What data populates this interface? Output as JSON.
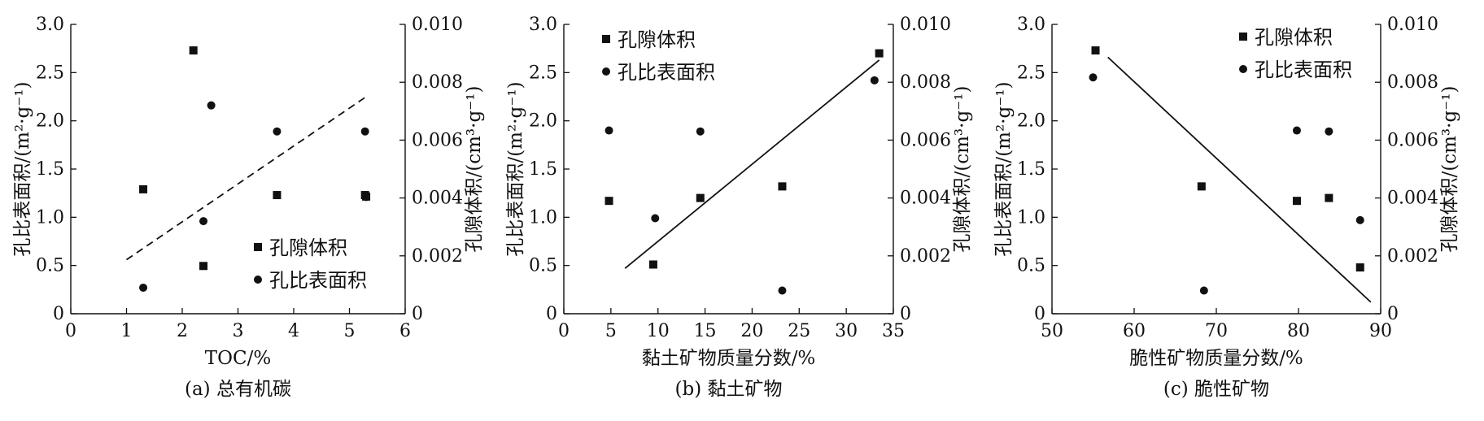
{
  "chart_data": [
    {
      "type": "scatter",
      "caption": "(a) 总有机碳",
      "xlabel": "TOC/%",
      "ylabel_left": "孔比表面积/(m²·g⁻¹)",
      "ylabel_right": "孔隙体积/(cm³·g⁻¹)",
      "xlim": [
        0,
        6
      ],
      "xticks": [
        "0",
        "1",
        "2",
        "3",
        "4",
        "5",
        "6"
      ],
      "ylim_left": [
        0,
        3.0
      ],
      "yticks_left": [
        "0",
        "0.5",
        "1.0",
        "1.5",
        "2.0",
        "2.5",
        "3.0"
      ],
      "ylim_right": [
        0,
        0.01
      ],
      "yticks_right": [
        "0",
        "0.002",
        "0.004",
        "0.006",
        "0.008",
        "0.010"
      ],
      "legend_position": "bottom-right",
      "series": [
        {
          "name": "孔隙体积",
          "marker": "square",
          "axis": "right",
          "x": [
            1.3,
            2.2,
            2.38,
            3.7,
            5.28,
            5.3
          ],
          "y": [
            0.0043,
            0.0091,
            0.00165,
            0.0041,
            0.0041,
            0.00405
          ]
        },
        {
          "name": "孔比表面积",
          "marker": "circle",
          "axis": "left",
          "x": [
            1.3,
            2.38,
            2.52,
            3.7,
            5.28,
            5.3
          ],
          "y": [
            0.27,
            0.96,
            2.16,
            1.89,
            1.89,
            1.21
          ]
        }
      ],
      "fit_lines": [
        {
          "style": "dashed",
          "x": [
            1.0,
            5.3
          ],
          "y": [
            0.56,
            2.25
          ]
        }
      ]
    },
    {
      "type": "scatter",
      "caption": "(b) 黏土矿物",
      "xlabel": "黏土矿物质量分数/%",
      "ylabel_left": "孔比表面积/(m²·g⁻¹)",
      "ylabel_right": "孔隙体积/(cm³·g⁻¹)",
      "xlim": [
        0,
        35
      ],
      "xticks": [
        "0",
        "5",
        "10",
        "15",
        "20",
        "25",
        "30",
        "35"
      ],
      "ylim_left": [
        0,
        3.0
      ],
      "yticks_left": [
        "0",
        "0.5",
        "1.0",
        "1.5",
        "2.0",
        "2.5",
        "3.0"
      ],
      "ylim_right": [
        0,
        0.01
      ],
      "yticks_right": [
        "0",
        "0.002",
        "0.004",
        "0.006",
        "0.008",
        "0.010"
      ],
      "legend_position": "top-left",
      "series": [
        {
          "name": "孔隙体积",
          "marker": "square",
          "axis": "right",
          "x": [
            4.8,
            9.5,
            14.5,
            23.2,
            33.5
          ],
          "y": [
            0.0039,
            0.0017,
            0.004,
            0.0044,
            0.009
          ]
        },
        {
          "name": "孔比表面积",
          "marker": "circle",
          "axis": "left",
          "x": [
            4.8,
            9.7,
            14.5,
            23.2,
            33.0
          ],
          "y": [
            1.9,
            0.99,
            1.89,
            0.24,
            2.42
          ]
        }
      ],
      "fit_lines": [
        {
          "style": "solid",
          "x": [
            6.5,
            33.5
          ],
          "y": [
            0.47,
            2.63
          ]
        }
      ]
    },
    {
      "type": "scatter",
      "caption": "(c) 脆性矿物",
      "xlabel": "脆性矿物质量分数/%",
      "ylabel_left": "孔比表面积/(m²·g⁻¹)",
      "ylabel_right": "孔隙体积/(cm³·g⁻¹)",
      "xlim": [
        50,
        90
      ],
      "xticks": [
        "50",
        "60",
        "70",
        "80",
        "90"
      ],
      "ylim_left": [
        0,
        3.0
      ],
      "yticks_left": [
        "0",
        "0.5",
        "1.0",
        "1.5",
        "2.0",
        "2.5",
        "3.0"
      ],
      "ylim_right": [
        0,
        0.01
      ],
      "yticks_right": [
        "0",
        "0.002",
        "0.004",
        "0.006",
        "0.008",
        "0.010"
      ],
      "legend_position": "top-right",
      "series": [
        {
          "name": "孔隙体积",
          "marker": "square",
          "axis": "right",
          "x": [
            55.3,
            68.2,
            79.8,
            83.7,
            87.5
          ],
          "y": [
            0.0091,
            0.0044,
            0.0039,
            0.004,
            0.0016
          ]
        },
        {
          "name": "孔比表面积",
          "marker": "circle",
          "axis": "left",
          "x": [
            55.0,
            68.5,
            79.8,
            83.7,
            87.5
          ],
          "y": [
            2.45,
            0.24,
            1.9,
            1.89,
            0.97
          ]
        }
      ],
      "fit_lines": [
        {
          "style": "solid",
          "x": [
            56.8,
            88.8
          ],
          "y": [
            2.66,
            0.12
          ]
        }
      ]
    }
  ]
}
